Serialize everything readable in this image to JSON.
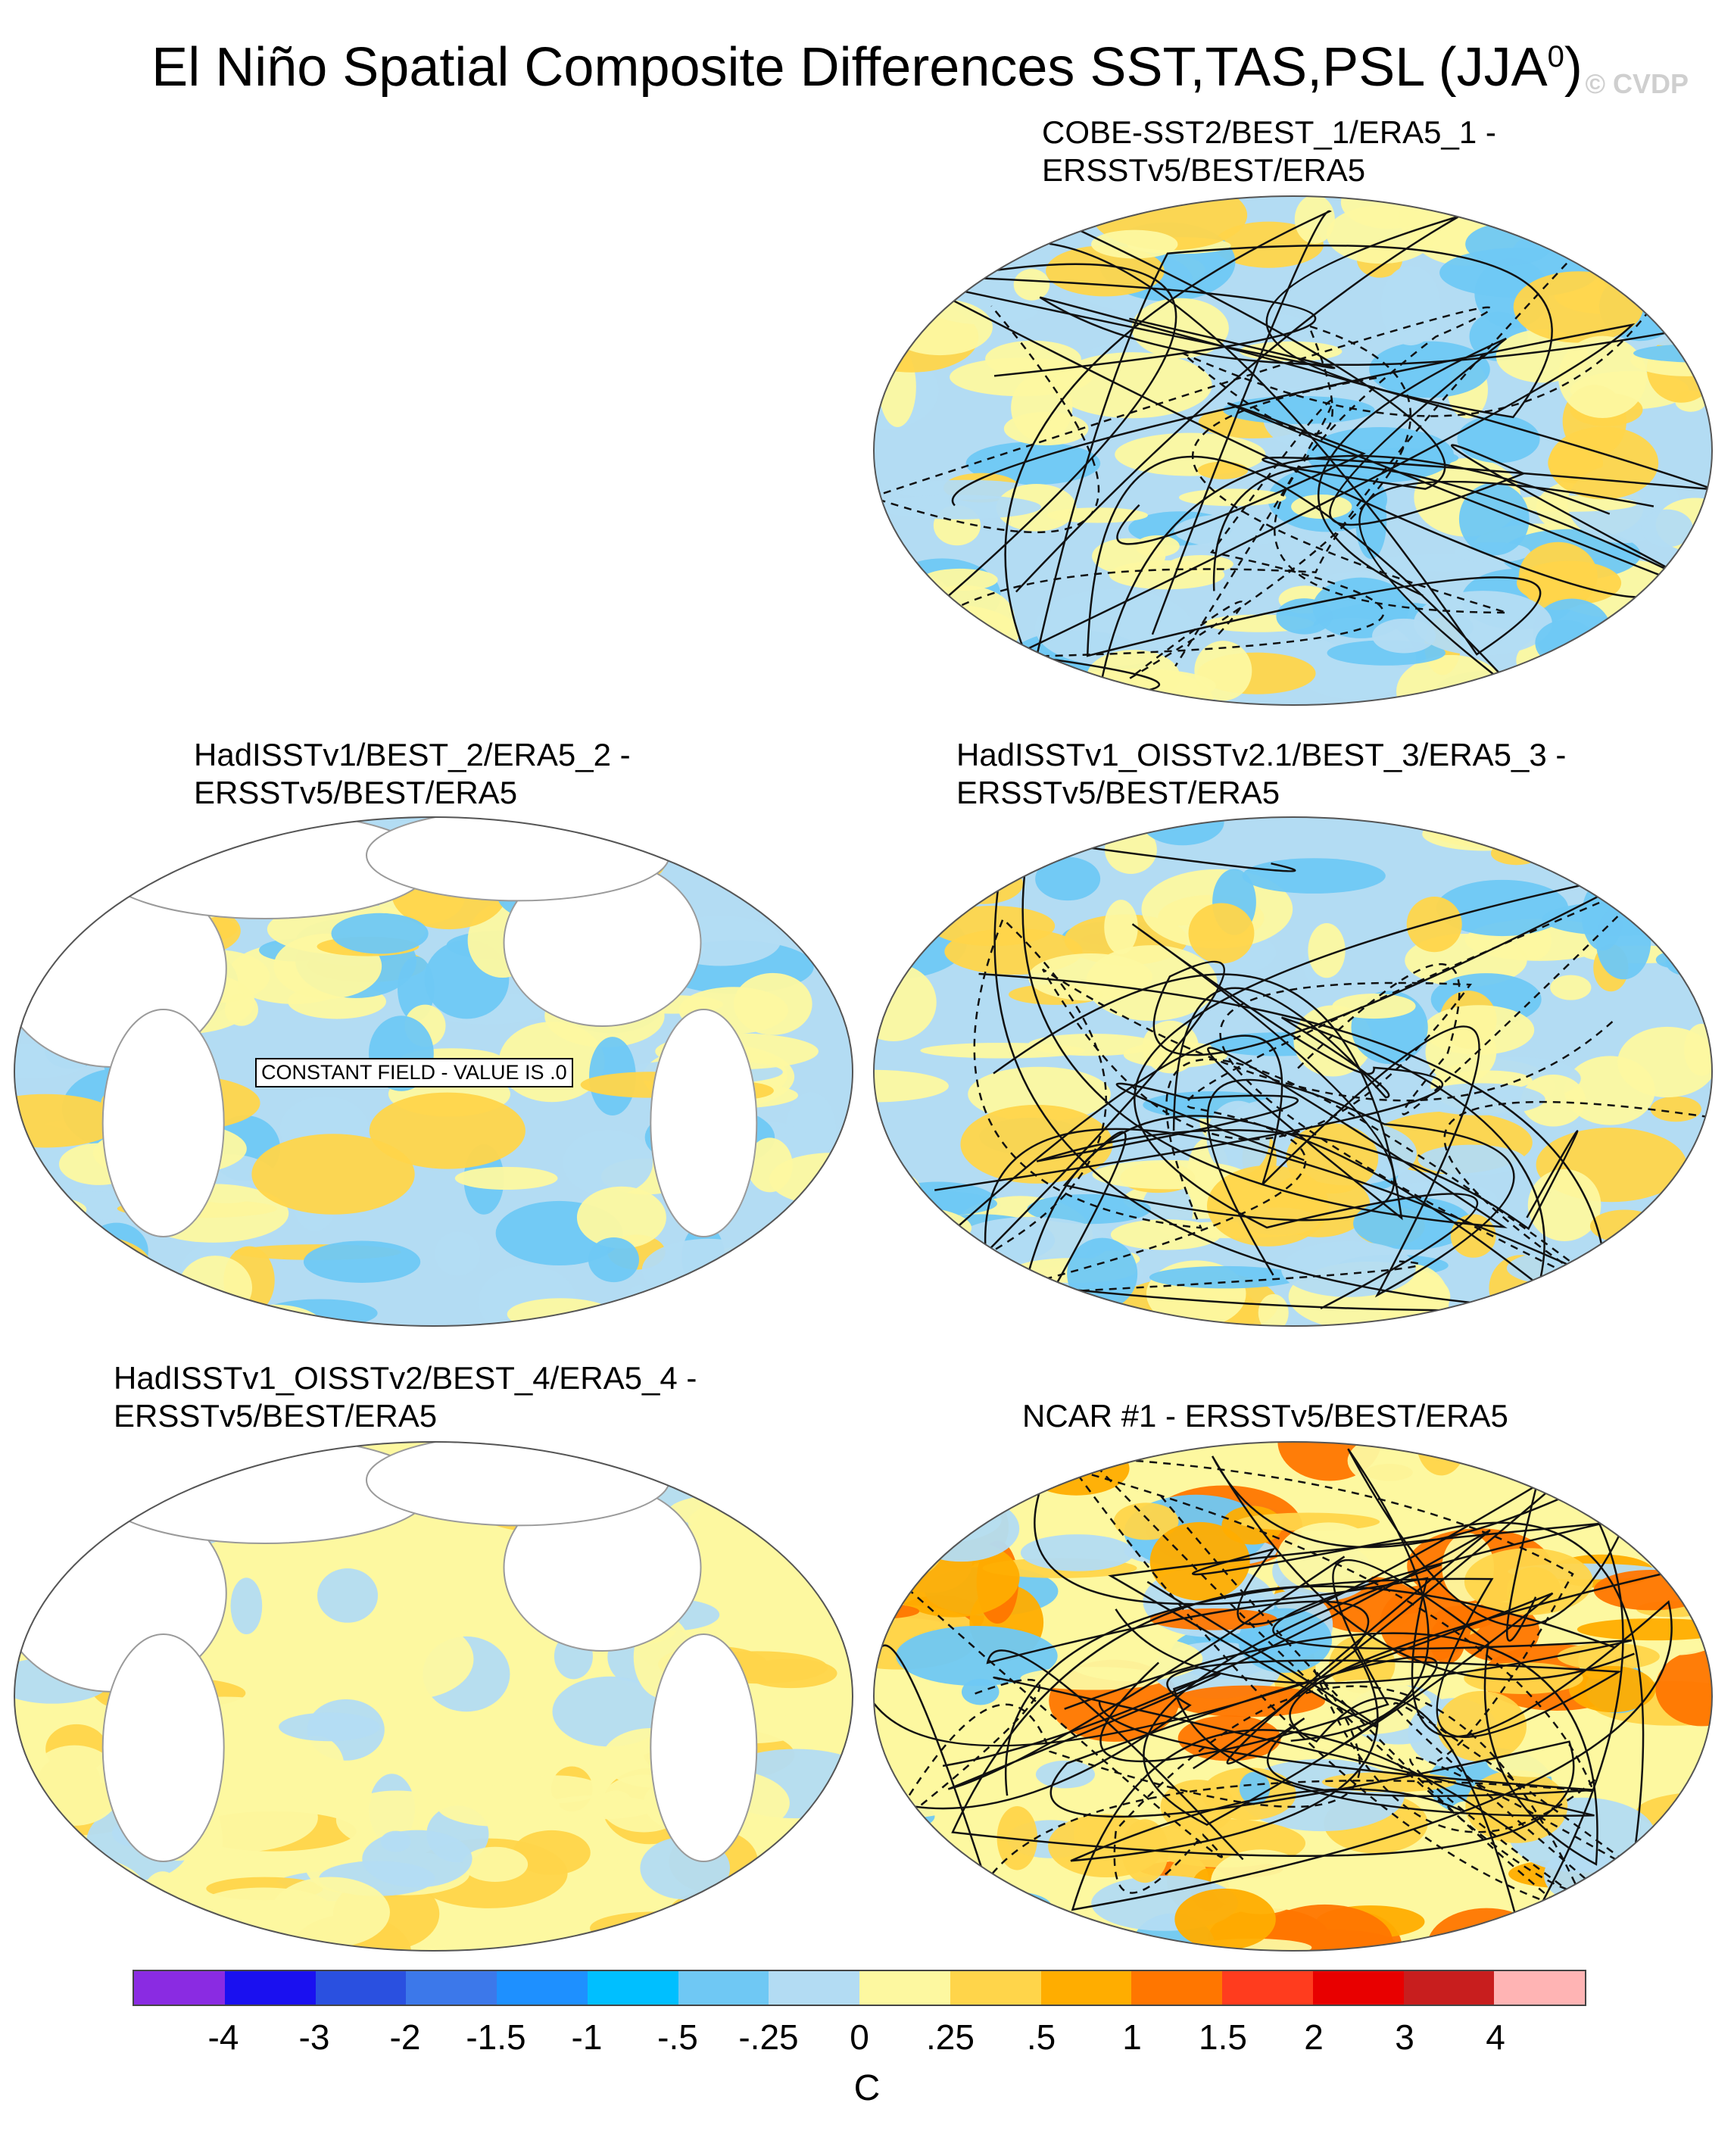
{
  "title": "El Niño Spatial Composite Differences SST,TAS,PSL (JJA",
  "title_sup": "0",
  "title_close": ")",
  "watermark": "© CVDP",
  "panels": [
    {
      "label_line1": "COBE-SST2/BEST_1/ERA5_1 -",
      "label_line2": "ERSSTv5/BEST/ERA5",
      "constant_field": ""
    },
    {
      "label_line1": "HadISSTv1/BEST_2/ERA5_2 -",
      "label_line2": "ERSSTv5/BEST/ERA5",
      "constant_field": "CONSTANT FIELD - VALUE IS .0"
    },
    {
      "label_line1": "HadISSTv1_OISSTv2.1/BEST_3/ERA5_3 -",
      "label_line2": "ERSSTv5/BEST/ERA5",
      "constant_field": ""
    },
    {
      "label_line1": "HadISSTv1_OISSTv2/BEST_4/ERA5_4 -",
      "label_line2": "ERSSTv5/BEST/ERA5",
      "constant_field": ""
    },
    {
      "label_line1": "NCAR #1 - ERSSTv5/BEST/ERA5",
      "label_line2": "",
      "constant_field": ""
    }
  ],
  "colorbar": {
    "colors": [
      "#8a2be2",
      "#1a10f0",
      "#2a50e0",
      "#3c78ea",
      "#1e90ff",
      "#00bfff",
      "#6fc8f4",
      "#b3dcf3",
      "#fdf8a0",
      "#ffd54a",
      "#ffad00",
      "#ff7600",
      "#ff3c1e",
      "#e80000",
      "#c81e1e",
      "#ffb4b4"
    ],
    "tick_labels": [
      "-4",
      "-3",
      "-2",
      "-1.5",
      "-1",
      "-.5",
      "-.25",
      "0",
      ".25",
      ".5",
      "1",
      "1.5",
      "2",
      "3",
      "4"
    ],
    "units": "C"
  }
}
